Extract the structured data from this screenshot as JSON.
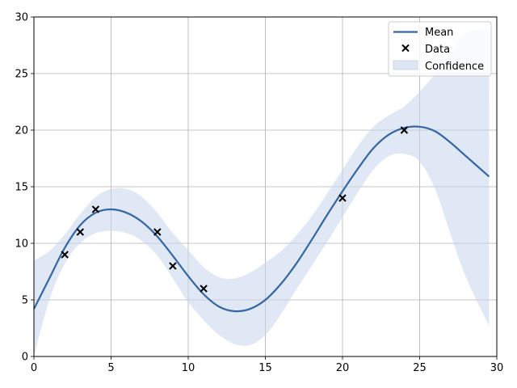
{
  "chart_data": {
    "type": "line",
    "title": "",
    "xlabel": "",
    "ylabel": "",
    "xlim": [
      0,
      30
    ],
    "ylim": [
      0,
      30
    ],
    "x_ticks": [
      0,
      5,
      10,
      15,
      20,
      25,
      30
    ],
    "y_ticks": [
      0,
      5,
      10,
      15,
      20,
      25,
      30
    ],
    "grid": true,
    "legend_position": "top-right",
    "colors": {
      "mean": "#3465a4",
      "data": "#000000",
      "confidence": "#c8d6ec",
      "grid": "#b0b0b0"
    },
    "series": [
      {
        "name": "Mean",
        "kind": "line",
        "x": [
          0,
          1,
          2,
          3,
          4,
          5,
          6,
          7,
          8,
          9,
          10,
          11,
          12,
          13,
          14,
          15,
          16,
          17,
          18,
          19,
          20,
          21,
          22,
          23,
          24,
          25,
          26,
          27,
          28,
          29.5
        ],
        "y": [
          4.2,
          6.9,
          9.6,
          11.6,
          12.7,
          13.0,
          12.7,
          11.9,
          10.6,
          8.9,
          7.1,
          5.5,
          4.4,
          4.0,
          4.2,
          5.0,
          6.4,
          8.2,
          10.3,
          12.5,
          14.6,
          16.6,
          18.4,
          19.6,
          20.2,
          20.3,
          19.9,
          18.9,
          17.7,
          15.9
        ]
      },
      {
        "name": "Data",
        "kind": "scatter",
        "x": [
          2,
          3,
          4,
          8,
          9,
          11,
          20,
          24
        ],
        "y": [
          9,
          11,
          13,
          11,
          8,
          6,
          14,
          20
        ]
      },
      {
        "name": "Confidence",
        "kind": "band",
        "x": [
          0,
          1,
          2,
          3,
          4,
          5,
          6,
          7,
          8,
          9,
          10,
          11,
          12,
          13,
          14,
          15,
          16,
          17,
          18,
          19,
          20,
          21,
          22,
          23,
          24,
          25,
          26,
          27,
          28,
          29.5
        ],
        "lower": [
          0.0,
          5.0,
          8.2,
          10.0,
          10.9,
          11.1,
          10.9,
          10.2,
          8.9,
          6.9,
          4.8,
          3.2,
          1.9,
          1.1,
          1.0,
          1.9,
          3.7,
          5.9,
          8.0,
          10.1,
          12.3,
          14.5,
          16.5,
          17.7,
          17.9,
          17.2,
          14.8,
          10.8,
          7.0,
          2.7
        ],
        "upper": [
          8.5,
          9.3,
          10.8,
          12.6,
          14.1,
          14.8,
          14.8,
          14.1,
          12.7,
          10.9,
          9.4,
          7.9,
          7.0,
          6.9,
          7.4,
          8.3,
          9.3,
          10.7,
          12.4,
          14.4,
          16.5,
          18.6,
          20.3,
          21.3,
          22.1,
          23.4,
          25.0,
          26.9,
          28.6,
          29.0
        ]
      }
    ]
  }
}
